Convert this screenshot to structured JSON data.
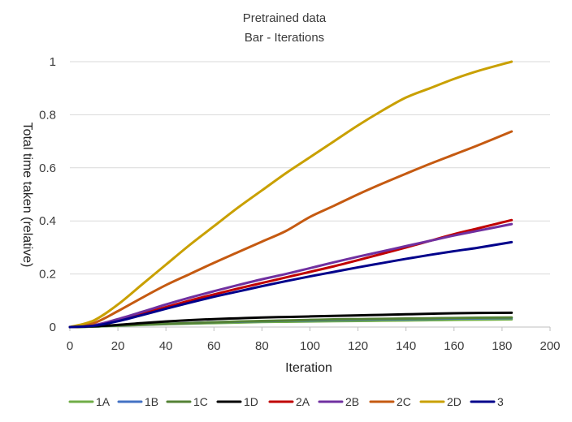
{
  "chart_data": {
    "type": "line",
    "title": "Pretrained data",
    "subtitle": "Bar - Iterations",
    "xlabel": "Iteration",
    "ylabel": "Total time taken (relative)",
    "xlim": [
      0,
      200
    ],
    "ylim": [
      0,
      1
    ],
    "x_ticks": [
      0,
      20,
      40,
      60,
      80,
      100,
      120,
      140,
      160,
      180,
      200
    ],
    "y_ticks": [
      0,
      0.2,
      0.4,
      0.6,
      0.8,
      1
    ],
    "x_tick_labels": [
      "0",
      "20",
      "40",
      "60",
      "80",
      "100",
      "120",
      "140",
      "160",
      "180",
      "200"
    ],
    "y_tick_labels": [
      "0",
      "0.2",
      "0.4",
      "0.6",
      "0.8",
      "1"
    ],
    "grid": "horizontal",
    "legend_position": "bottom",
    "x": [
      0,
      10,
      20,
      30,
      40,
      50,
      60,
      70,
      80,
      90,
      100,
      110,
      120,
      130,
      140,
      150,
      160,
      170,
      184
    ],
    "series": [
      {
        "name": "1A",
        "color": "#70ad47",
        "values": [
          0,
          0.002,
          0.005,
          0.008,
          0.011,
          0.013,
          0.015,
          0.017,
          0.019,
          0.02,
          0.021,
          0.022,
          0.023,
          0.024,
          0.025,
          0.026,
          0.027,
          0.028,
          0.029
        ]
      },
      {
        "name": "1B",
        "color": "#4472c4",
        "values": [
          0,
          0.002,
          0.006,
          0.009,
          0.012,
          0.015,
          0.018,
          0.02,
          0.022,
          0.024,
          0.025,
          0.027,
          0.028,
          0.029,
          0.03,
          0.031,
          0.032,
          0.033,
          0.034
        ]
      },
      {
        "name": "1C",
        "color": "#548235",
        "values": [
          0,
          0.002,
          0.006,
          0.009,
          0.012,
          0.015,
          0.018,
          0.021,
          0.023,
          0.025,
          0.027,
          0.029,
          0.03,
          0.031,
          0.032,
          0.033,
          0.034,
          0.035,
          0.036
        ]
      },
      {
        "name": "1D",
        "color": "#000000",
        "values": [
          0,
          0.003,
          0.008,
          0.015,
          0.021,
          0.026,
          0.03,
          0.033,
          0.036,
          0.038,
          0.04,
          0.042,
          0.044,
          0.046,
          0.048,
          0.05,
          0.052,
          0.053,
          0.054
        ]
      },
      {
        "name": "2A",
        "color": "#c00000",
        "values": [
          0,
          0.006,
          0.025,
          0.05,
          0.075,
          0.1,
          0.123,
          0.145,
          0.166,
          0.187,
          0.208,
          0.229,
          0.252,
          0.276,
          0.3,
          0.325,
          0.35,
          0.372,
          0.403
        ]
      },
      {
        "name": "2B",
        "color": "#7030a0",
        "values": [
          0,
          0.007,
          0.03,
          0.057,
          0.085,
          0.111,
          0.135,
          0.158,
          0.18,
          0.2,
          0.222,
          0.244,
          0.265,
          0.285,
          0.305,
          0.325,
          0.345,
          0.363,
          0.388
        ]
      },
      {
        "name": "2C",
        "color": "#c55a11",
        "values": [
          0,
          0.015,
          0.06,
          0.11,
          0.158,
          0.2,
          0.242,
          0.282,
          0.322,
          0.362,
          0.415,
          0.457,
          0.5,
          0.54,
          0.578,
          0.615,
          0.65,
          0.685,
          0.737
        ]
      },
      {
        "name": "2D",
        "color": "#c9a000",
        "values": [
          0,
          0.025,
          0.085,
          0.16,
          0.235,
          0.31,
          0.38,
          0.45,
          0.515,
          0.58,
          0.64,
          0.7,
          0.76,
          0.815,
          0.865,
          0.9,
          0.935,
          0.965,
          1.0
        ]
      },
      {
        "name": "3",
        "color": "#00008b",
        "values": [
          0,
          0.005,
          0.022,
          0.045,
          0.069,
          0.092,
          0.114,
          0.134,
          0.154,
          0.173,
          0.191,
          0.208,
          0.225,
          0.241,
          0.257,
          0.272,
          0.286,
          0.299,
          0.32
        ]
      }
    ]
  }
}
